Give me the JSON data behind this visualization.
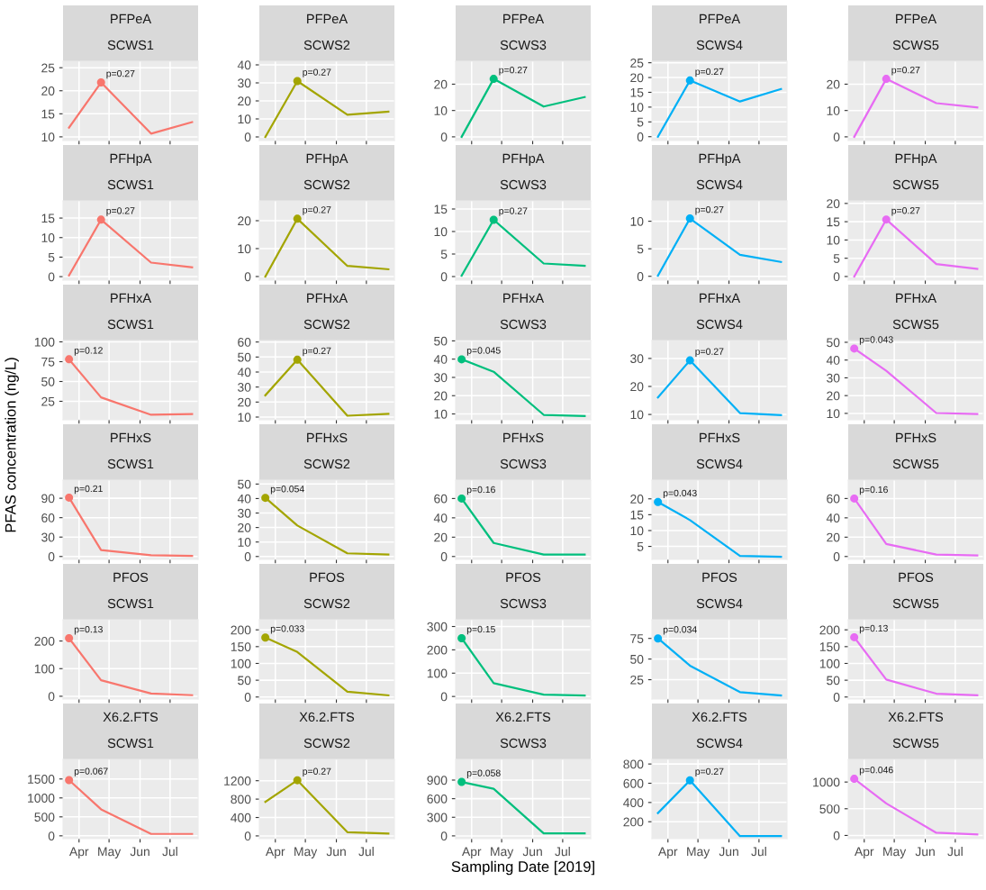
{
  "chart_data": [
    {
      "type": "line",
      "title": "PFPeA",
      "subtitle": "SCWS1",
      "x": [
        "2019-03-22",
        "2019-04-23",
        "2019-06-12",
        "2019-07-23"
      ],
      "series": [
        {
          "color": "#F8766D",
          "values": [
            12,
            21.8,
            10.7,
            13.2
          ]
        },
        {
          "type": "scatter",
          "marker": "circle",
          "x": [
            "2019-04-23"
          ],
          "color": "#F8766D",
          "values": [
            21.8
          ]
        }
      ],
      "annotations": [
        {
          "text": "p=0.27",
          "x": "2019-04-23",
          "y": 21.8
        }
      ],
      "xlim": [
        "2019-03-16",
        "2019-07-29"
      ],
      "xticks": [
        {
          "value": "2019-04-01",
          "label": null
        },
        {
          "value": "2019-05-01",
          "label": null
        },
        {
          "value": "2019-06-01",
          "label": null
        },
        {
          "value": "2019-07-01",
          "label": null
        }
      ],
      "ylim": [
        9.2,
        26.4
      ],
      "yticks": [
        10,
        15,
        20,
        25
      ],
      "grid": true,
      "tick_labels": "y"
    },
    {
      "type": "line",
      "title": "PFPeA",
      "subtitle": "SCWS2",
      "x": [
        "2019-03-22",
        "2019-04-23",
        "2019-06-12",
        "2019-07-23"
      ],
      "series": [
        {
          "color": "#A3A500",
          "values": [
            0,
            31,
            12.3,
            14
          ]
        },
        {
          "type": "scatter",
          "marker": "circle",
          "x": [
            "2019-04-23"
          ],
          "color": "#A3A500",
          "values": [
            31
          ]
        }
      ],
      "annotations": [
        {
          "text": "p=0.27",
          "x": "2019-04-23",
          "y": 31
        }
      ],
      "xlim": [
        "2019-03-16",
        "2019-07-29"
      ],
      "xticks": [
        {
          "value": "2019-04-01",
          "label": null
        },
        {
          "value": "2019-05-01",
          "label": null
        },
        {
          "value": "2019-06-01",
          "label": null
        },
        {
          "value": "2019-07-01",
          "label": null
        }
      ],
      "ylim": [
        -2,
        42
      ],
      "yticks": [
        0,
        10,
        20,
        30,
        40
      ],
      "grid": true,
      "tick_labels": "y"
    },
    {
      "type": "line",
      "title": "PFPeA",
      "subtitle": "SCWS3",
      "x": [
        "2019-03-22",
        "2019-04-23",
        "2019-06-12",
        "2019-07-23"
      ],
      "series": [
        {
          "color": "#00BF7D",
          "values": [
            0,
            22,
            11.5,
            15.1
          ]
        },
        {
          "type": "scatter",
          "marker": "circle",
          "x": [
            "2019-04-23"
          ],
          "color": "#00BF7D",
          "values": [
            22
          ]
        }
      ],
      "annotations": [
        {
          "text": "p=0.27",
          "x": "2019-04-23",
          "y": 22
        }
      ],
      "xlim": [
        "2019-03-16",
        "2019-07-29"
      ],
      "xticks": [
        {
          "value": "2019-04-01",
          "label": null
        },
        {
          "value": "2019-05-01",
          "label": null
        },
        {
          "value": "2019-06-01",
          "label": null
        },
        {
          "value": "2019-07-01",
          "label": null
        }
      ],
      "ylim": [
        -1.4,
        28.7
      ],
      "yticks": [
        0,
        10,
        20
      ],
      "grid": true,
      "tick_labels": "y"
    },
    {
      "type": "line",
      "title": "PFPeA",
      "subtitle": "SCWS4",
      "x": [
        "2019-03-22",
        "2019-04-23",
        "2019-06-12",
        "2019-07-23"
      ],
      "series": [
        {
          "color": "#00B0F6",
          "values": [
            0,
            19,
            11.9,
            16.1
          ]
        },
        {
          "type": "scatter",
          "marker": "circle",
          "x": [
            "2019-04-23"
          ],
          "color": "#00B0F6",
          "values": [
            19
          ]
        }
      ],
      "annotations": [
        {
          "text": "p=0.27",
          "x": "2019-04-23",
          "y": 19
        }
      ],
      "xlim": [
        "2019-03-16",
        "2019-07-29"
      ],
      "xticks": [
        {
          "value": "2019-04-01",
          "label": null
        },
        {
          "value": "2019-05-01",
          "label": null
        },
        {
          "value": "2019-06-01",
          "label": null
        },
        {
          "value": "2019-07-01",
          "label": null
        }
      ],
      "ylim": [
        -1.3,
        25.5
      ],
      "yticks": [
        0,
        5,
        10,
        15,
        20,
        25
      ],
      "grid": true,
      "tick_labels": "y"
    },
    {
      "type": "line",
      "title": "PFPeA",
      "subtitle": "SCWS5",
      "x": [
        "2019-03-22",
        "2019-04-23",
        "2019-06-12",
        "2019-07-23"
      ],
      "series": [
        {
          "color": "#E76BF3",
          "values": [
            0,
            22,
            12.8,
            11.2
          ]
        },
        {
          "type": "scatter",
          "marker": "circle",
          "x": [
            "2019-04-23"
          ],
          "color": "#E76BF3",
          "values": [
            22
          ]
        }
      ],
      "annotations": [
        {
          "text": "p=0.27",
          "x": "2019-04-23",
          "y": 22
        }
      ],
      "xlim": [
        "2019-03-16",
        "2019-07-29"
      ],
      "xticks": [
        {
          "value": "2019-04-01",
          "label": null
        },
        {
          "value": "2019-05-01",
          "label": null
        },
        {
          "value": "2019-06-01",
          "label": null
        },
        {
          "value": "2019-07-01",
          "label": null
        }
      ],
      "ylim": [
        -1.4,
        28.7
      ],
      "yticks": [
        0,
        10,
        20
      ],
      "grid": true,
      "tick_labels": "y"
    },
    {
      "type": "line",
      "title": "PFHpA",
      "subtitle": "SCWS1",
      "x": [
        "2019-03-22",
        "2019-04-23",
        "2019-06-12",
        "2019-07-23"
      ],
      "series": [
        {
          "color": "#F8766D",
          "values": [
            0.3,
            14.6,
            3.6,
            2.4
          ]
        },
        {
          "type": "scatter",
          "marker": "circle",
          "x": [
            "2019-04-23"
          ],
          "color": "#F8766D",
          "values": [
            14.6
          ]
        }
      ],
      "annotations": [
        {
          "text": "p=0.27",
          "x": "2019-04-23",
          "y": 14.6
        }
      ],
      "xlim": [
        "2019-03-16",
        "2019-07-29"
      ],
      "xticks": [
        {
          "value": "2019-04-01",
          "label": null
        },
        {
          "value": "2019-05-01",
          "label": null
        },
        {
          "value": "2019-06-01",
          "label": null
        },
        {
          "value": "2019-07-01",
          "label": null
        }
      ],
      "ylim": [
        -0.9,
        19.4
      ],
      "yticks": [
        0,
        5,
        10,
        15
      ],
      "grid": true,
      "tick_labels": "y"
    },
    {
      "type": "line",
      "title": "PFHpA",
      "subtitle": "SCWS2",
      "x": [
        "2019-03-22",
        "2019-04-23",
        "2019-06-12",
        "2019-07-23"
      ],
      "series": [
        {
          "color": "#A3A500",
          "values": [
            0,
            20.7,
            3.8,
            2.6
          ]
        },
        {
          "type": "scatter",
          "marker": "circle",
          "x": [
            "2019-04-23"
          ],
          "color": "#A3A500",
          "values": [
            20.7
          ]
        }
      ],
      "annotations": [
        {
          "text": "p=0.27",
          "x": "2019-04-23",
          "y": 20.7
        }
      ],
      "xlim": [
        "2019-03-16",
        "2019-07-29"
      ],
      "xticks": [
        {
          "value": "2019-04-01",
          "label": null
        },
        {
          "value": "2019-05-01",
          "label": null
        },
        {
          "value": "2019-06-01",
          "label": null
        },
        {
          "value": "2019-07-01",
          "label": null
        }
      ],
      "ylim": [
        -1.3,
        27.1
      ],
      "yticks": [
        0,
        10,
        20
      ],
      "grid": true,
      "tick_labels": "y"
    },
    {
      "type": "line",
      "title": "PFHpA",
      "subtitle": "SCWS3",
      "x": [
        "2019-03-22",
        "2019-04-23",
        "2019-06-12",
        "2019-07-23"
      ],
      "series": [
        {
          "color": "#00BF7D",
          "values": [
            0.2,
            12.6,
            2.9,
            2.4
          ]
        },
        {
          "type": "scatter",
          "marker": "circle",
          "x": [
            "2019-04-23"
          ],
          "color": "#00BF7D",
          "values": [
            12.6
          ]
        }
      ],
      "annotations": [
        {
          "text": "p=0.27",
          "x": "2019-04-23",
          "y": 12.6
        }
      ],
      "xlim": [
        "2019-03-16",
        "2019-07-29"
      ],
      "xticks": [
        {
          "value": "2019-04-01",
          "label": null
        },
        {
          "value": "2019-05-01",
          "label": null
        },
        {
          "value": "2019-06-01",
          "label": null
        },
        {
          "value": "2019-07-01",
          "label": null
        }
      ],
      "ylim": [
        -0.8,
        16.8
      ],
      "yticks": [
        0,
        5,
        10,
        15
      ],
      "grid": true,
      "tick_labels": "y"
    },
    {
      "type": "line",
      "title": "PFHpA",
      "subtitle": "SCWS4",
      "x": [
        "2019-03-22",
        "2019-04-23",
        "2019-06-12",
        "2019-07-23"
      ],
      "series": [
        {
          "color": "#00B0F6",
          "values": [
            0.1,
            10.5,
            3.9,
            2.6
          ]
        },
        {
          "type": "scatter",
          "marker": "circle",
          "x": [
            "2019-04-23"
          ],
          "color": "#00B0F6",
          "values": [
            10.5
          ]
        }
      ],
      "annotations": [
        {
          "text": "p=0.27",
          "x": "2019-04-23",
          "y": 10.5
        }
      ],
      "xlim": [
        "2019-03-16",
        "2019-07-29"
      ],
      "xticks": [
        {
          "value": "2019-04-01",
          "label": null
        },
        {
          "value": "2019-05-01",
          "label": null
        },
        {
          "value": "2019-06-01",
          "label": null
        },
        {
          "value": "2019-07-01",
          "label": null
        }
      ],
      "ylim": [
        -0.7,
        13.7
      ],
      "yticks": [
        0,
        5,
        10
      ],
      "grid": true,
      "tick_labels": "y"
    },
    {
      "type": "line",
      "title": "PFHpA",
      "subtitle": "SCWS5",
      "x": [
        "2019-03-22",
        "2019-04-23",
        "2019-06-12",
        "2019-07-23"
      ],
      "series": [
        {
          "color": "#E76BF3",
          "values": [
            0,
            15.6,
            3.4,
            2.1
          ]
        },
        {
          "type": "scatter",
          "marker": "circle",
          "x": [
            "2019-04-23"
          ],
          "color": "#E76BF3",
          "values": [
            15.6
          ]
        }
      ],
      "annotations": [
        {
          "text": "p=0.27",
          "x": "2019-04-23",
          "y": 15.6
        }
      ],
      "xlim": [
        "2019-03-16",
        "2019-07-29"
      ],
      "xticks": [
        {
          "value": "2019-04-01",
          "label": null
        },
        {
          "value": "2019-05-01",
          "label": null
        },
        {
          "value": "2019-06-01",
          "label": null
        },
        {
          "value": "2019-07-01",
          "label": null
        }
      ],
      "ylim": [
        -1.0,
        20.7
      ],
      "yticks": [
        0,
        5,
        10,
        15,
        20
      ],
      "grid": true,
      "tick_labels": "y"
    },
    {
      "type": "line",
      "title": "PFHxA",
      "subtitle": "SCWS1",
      "ylabel": "PFAS concentration (ng/L)",
      "x": [
        "2019-03-22",
        "2019-04-23",
        "2019-06-12",
        "2019-07-23"
      ],
      "series": [
        {
          "color": "#F8766D",
          "values": [
            78,
            30,
            8,
            9
          ]
        },
        {
          "type": "scatter",
          "marker": "circle",
          "x": [
            "2019-03-22"
          ],
          "color": "#F8766D",
          "values": [
            78
          ]
        }
      ],
      "annotations": [
        {
          "text": "p=0.12",
          "x": "2019-03-22",
          "y": 78
        }
      ],
      "xlim": [
        "2019-03-16",
        "2019-07-29"
      ],
      "xticks": [
        {
          "value": "2019-04-01",
          "label": null
        },
        {
          "value": "2019-05-01",
          "label": null
        },
        {
          "value": "2019-06-01",
          "label": null
        },
        {
          "value": "2019-07-01",
          "label": null
        }
      ],
      "ylim": [
        1.7,
        101.7
      ],
      "yticks": [
        25,
        50,
        75,
        100
      ],
      "grid": true,
      "tick_labels": "y"
    },
    {
      "type": "line",
      "title": "PFHxA",
      "subtitle": "SCWS2",
      "x": [
        "2019-03-22",
        "2019-04-23",
        "2019-06-12",
        "2019-07-23"
      ],
      "series": [
        {
          "color": "#A3A500",
          "values": [
            24.5,
            48.2,
            10.9,
            12.2
          ]
        },
        {
          "type": "scatter",
          "marker": "circle",
          "x": [
            "2019-04-23"
          ],
          "color": "#A3A500",
          "values": [
            48.2
          ]
        }
      ],
      "annotations": [
        {
          "text": "p=0.27",
          "x": "2019-04-23",
          "y": 48.2
        }
      ],
      "xlim": [
        "2019-03-16",
        "2019-07-29"
      ],
      "xticks": [
        {
          "value": "2019-04-01",
          "label": null
        },
        {
          "value": "2019-05-01",
          "label": null
        },
        {
          "value": "2019-06-01",
          "label": null
        },
        {
          "value": "2019-07-01",
          "label": null
        }
      ],
      "ylim": [
        8.2,
        61
      ],
      "yticks": [
        10,
        20,
        30,
        40,
        50,
        60
      ],
      "grid": true,
      "tick_labels": "y"
    },
    {
      "type": "line",
      "title": "PFHxA",
      "subtitle": "SCWS3",
      "x": [
        "2019-03-22",
        "2019-04-23",
        "2019-06-12",
        "2019-07-23"
      ],
      "series": [
        {
          "color": "#00BF7D",
          "values": [
            39.9,
            33.1,
            9.5,
            8.9
          ]
        },
        {
          "type": "scatter",
          "marker": "circle",
          "x": [
            "2019-03-22"
          ],
          "color": "#00BF7D",
          "values": [
            39.9
          ]
        }
      ],
      "annotations": [
        {
          "text": "p=0.045",
          "x": "2019-03-22",
          "y": 39.9
        }
      ],
      "xlim": [
        "2019-03-16",
        "2019-07-29"
      ],
      "xticks": [
        {
          "value": "2019-04-01",
          "label": null
        },
        {
          "value": "2019-05-01",
          "label": null
        },
        {
          "value": "2019-06-01",
          "label": null
        },
        {
          "value": "2019-07-01",
          "label": null
        }
      ],
      "ylim": [
        6.8,
        50.2
      ],
      "yticks": [
        10,
        20,
        30,
        40,
        50
      ],
      "grid": true,
      "tick_labels": "y"
    },
    {
      "type": "line",
      "title": "PFHxA",
      "subtitle": "SCWS4",
      "x": [
        "2019-03-22",
        "2019-04-23",
        "2019-06-12",
        "2019-07-23"
      ],
      "series": [
        {
          "color": "#00B0F6",
          "values": [
            16.1,
            29.3,
            10.5,
            9.8
          ]
        },
        {
          "type": "scatter",
          "marker": "circle",
          "x": [
            "2019-04-23"
          ],
          "color": "#00B0F6",
          "values": [
            29.3
          ]
        }
      ],
      "annotations": [
        {
          "text": "p=0.27",
          "x": "2019-04-23",
          "y": 29.3
        }
      ],
      "xlim": [
        "2019-03-16",
        "2019-07-29"
      ],
      "xticks": [
        {
          "value": "2019-04-01",
          "label": null
        },
        {
          "value": "2019-05-01",
          "label": null
        },
        {
          "value": "2019-06-01",
          "label": null
        },
        {
          "value": "2019-07-01",
          "label": null
        }
      ],
      "ylim": [
        8.1,
        36.4
      ],
      "yticks": [
        10,
        20,
        30
      ],
      "grid": true,
      "tick_labels": "y"
    },
    {
      "type": "line",
      "title": "PFHxA",
      "subtitle": "SCWS5",
      "x": [
        "2019-03-22",
        "2019-04-23",
        "2019-06-12",
        "2019-07-23"
      ],
      "series": [
        {
          "color": "#E76BF3",
          "values": [
            46.5,
            34,
            10.2,
            9.6
          ]
        },
        {
          "type": "scatter",
          "marker": "circle",
          "x": [
            "2019-03-22"
          ],
          "color": "#E76BF3",
          "values": [
            46.5
          ]
        }
      ],
      "annotations": [
        {
          "text": "p=0.043",
          "x": "2019-03-22",
          "y": 46.5
        }
      ],
      "xlim": [
        "2019-03-16",
        "2019-07-29"
      ],
      "xticks": [
        {
          "value": "2019-04-01",
          "label": null
        },
        {
          "value": "2019-05-01",
          "label": null
        },
        {
          "value": "2019-06-01",
          "label": null
        },
        {
          "value": "2019-07-01",
          "label": null
        }
      ],
      "ylim": [
        6.4,
        51
      ],
      "yticks": [
        10,
        20,
        30,
        40,
        50
      ],
      "grid": true,
      "tick_labels": "y"
    },
    {
      "type": "line",
      "title": "PFHxS",
      "subtitle": "SCWS1",
      "x": [
        "2019-03-22",
        "2019-04-23",
        "2019-06-12",
        "2019-07-23"
      ],
      "series": [
        {
          "color": "#F8766D",
          "values": [
            91,
            10,
            2,
            1
          ]
        },
        {
          "type": "scatter",
          "marker": "circle",
          "x": [
            "2019-03-22"
          ],
          "color": "#F8766D",
          "values": [
            91
          ]
        }
      ],
      "annotations": [
        {
          "text": "p=0.21",
          "x": "2019-03-22",
          "y": 91
        }
      ],
      "xlim": [
        "2019-03-16",
        "2019-07-29"
      ],
      "xticks": [
        {
          "value": "2019-04-01",
          "label": null
        },
        {
          "value": "2019-05-01",
          "label": null
        },
        {
          "value": "2019-06-01",
          "label": null
        },
        {
          "value": "2019-07-01",
          "label": null
        }
      ],
      "ylim": [
        -4.5,
        118
      ],
      "yticks": [
        0,
        30,
        60,
        90
      ],
      "grid": true,
      "tick_labels": "y"
    },
    {
      "type": "line",
      "title": "PFHxS",
      "subtitle": "SCWS2",
      "x": [
        "2019-03-22",
        "2019-04-23",
        "2019-06-12",
        "2019-07-23"
      ],
      "series": [
        {
          "color": "#A3A500",
          "values": [
            40.5,
            21.4,
            2.2,
            1.4
          ]
        },
        {
          "type": "scatter",
          "marker": "circle",
          "x": [
            "2019-03-22"
          ],
          "color": "#A3A500",
          "values": [
            40.5
          ]
        }
      ],
      "annotations": [
        {
          "text": "p=0.054",
          "x": "2019-03-22",
          "y": 40.5
        }
      ],
      "xlim": [
        "2019-03-16",
        "2019-07-29"
      ],
      "xticks": [
        {
          "value": "2019-04-01",
          "label": null
        },
        {
          "value": "2019-05-01",
          "label": null
        },
        {
          "value": "2019-06-01",
          "label": null
        },
        {
          "value": "2019-07-01",
          "label": null
        }
      ],
      "ylim": [
        -2,
        52.7
      ],
      "yticks": [
        0,
        10,
        20,
        30,
        40,
        50
      ],
      "grid": true,
      "tick_labels": "y"
    },
    {
      "type": "line",
      "title": "PFHxS",
      "subtitle": "SCWS3",
      "x": [
        "2019-03-22",
        "2019-04-23",
        "2019-06-12",
        "2019-07-23"
      ],
      "series": [
        {
          "color": "#00BF7D",
          "values": [
            60,
            14,
            2,
            2
          ]
        },
        {
          "type": "scatter",
          "marker": "circle",
          "x": [
            "2019-03-22"
          ],
          "color": "#00BF7D",
          "values": [
            60
          ]
        }
      ],
      "annotations": [
        {
          "text": "p=0.16",
          "x": "2019-03-22",
          "y": 60
        }
      ],
      "xlim": [
        "2019-03-16",
        "2019-07-29"
      ],
      "xticks": [
        {
          "value": "2019-04-01",
          "label": null
        },
        {
          "value": "2019-05-01",
          "label": null
        },
        {
          "value": "2019-06-01",
          "label": null
        },
        {
          "value": "2019-07-01",
          "label": null
        }
      ],
      "ylim": [
        -3,
        79
      ],
      "yticks": [
        0,
        20,
        40,
        60
      ],
      "grid": true,
      "tick_labels": "y"
    },
    {
      "type": "line",
      "title": "PFHxS",
      "subtitle": "SCWS4",
      "x": [
        "2019-03-22",
        "2019-04-23",
        "2019-06-12",
        "2019-07-23"
      ],
      "series": [
        {
          "color": "#00B0F6",
          "values": [
            19,
            13.3,
            2,
            1.7
          ]
        },
        {
          "type": "scatter",
          "marker": "circle",
          "x": [
            "2019-03-22"
          ],
          "color": "#00B0F6",
          "values": [
            19
          ]
        }
      ],
      "annotations": [
        {
          "text": "p=0.043",
          "x": "2019-03-22",
          "y": 19
        }
      ],
      "xlim": [
        "2019-03-16",
        "2019-07-29"
      ],
      "xticks": [
        {
          "value": "2019-04-01",
          "label": null
        },
        {
          "value": "2019-05-01",
          "label": null
        },
        {
          "value": "2019-06-01",
          "label": null
        },
        {
          "value": "2019-07-01",
          "label": null
        }
      ],
      "ylim": [
        0.9,
        25.9
      ],
      "yticks": [
        5,
        10,
        15,
        20
      ],
      "grid": true,
      "tick_labels": "y"
    },
    {
      "type": "line",
      "title": "PFHxS",
      "subtitle": "SCWS5",
      "x": [
        "2019-03-22",
        "2019-04-23",
        "2019-06-12",
        "2019-07-23"
      ],
      "series": [
        {
          "color": "#E76BF3",
          "values": [
            60,
            13,
            2,
            1
          ]
        },
        {
          "type": "scatter",
          "marker": "circle",
          "x": [
            "2019-03-22"
          ],
          "color": "#E76BF3",
          "values": [
            60
          ]
        }
      ],
      "annotations": [
        {
          "text": "p=0.16",
          "x": "2019-03-22",
          "y": 60
        }
      ],
      "xlim": [
        "2019-03-16",
        "2019-07-29"
      ],
      "xticks": [
        {
          "value": "2019-04-01",
          "label": null
        },
        {
          "value": "2019-05-01",
          "label": null
        },
        {
          "value": "2019-06-01",
          "label": null
        },
        {
          "value": "2019-07-01",
          "label": null
        }
      ],
      "ylim": [
        -3,
        79
      ],
      "yticks": [
        0,
        20,
        40,
        60
      ],
      "grid": true,
      "tick_labels": "y"
    },
    {
      "type": "line",
      "title": "PFOS",
      "subtitle": "SCWS1",
      "x": [
        "2019-03-22",
        "2019-04-23",
        "2019-06-12",
        "2019-07-23"
      ],
      "series": [
        {
          "color": "#F8766D",
          "values": [
            210,
            58,
            10,
            4
          ]
        },
        {
          "type": "scatter",
          "marker": "circle",
          "x": [
            "2019-03-22"
          ],
          "color": "#F8766D",
          "values": [
            210
          ]
        }
      ],
      "annotations": [
        {
          "text": "p=0.13",
          "x": "2019-03-22",
          "y": 210
        }
      ],
      "xlim": [
        "2019-03-16",
        "2019-07-29"
      ],
      "xticks": [
        {
          "value": "2019-04-01",
          "label": null
        },
        {
          "value": "2019-05-01",
          "label": null
        },
        {
          "value": "2019-06-01",
          "label": null
        },
        {
          "value": "2019-07-01",
          "label": null
        }
      ],
      "ylim": [
        -10,
        277
      ],
      "yticks": [
        0,
        100,
        200
      ],
      "grid": true,
      "tick_labels": "y"
    },
    {
      "type": "line",
      "title": "PFOS",
      "subtitle": "SCWS2",
      "x": [
        "2019-03-22",
        "2019-04-23",
        "2019-06-12",
        "2019-07-23"
      ],
      "series": [
        {
          "color": "#A3A500",
          "values": [
            177,
            134,
            16,
            5
          ]
        },
        {
          "type": "scatter",
          "marker": "circle",
          "x": [
            "2019-03-22"
          ],
          "color": "#A3A500",
          "values": [
            177
          ]
        }
      ],
      "annotations": [
        {
          "text": "p=0.033",
          "x": "2019-03-22",
          "y": 177
        }
      ],
      "xlim": [
        "2019-03-16",
        "2019-07-29"
      ],
      "xticks": [
        {
          "value": "2019-04-01",
          "label": null
        },
        {
          "value": "2019-05-01",
          "label": null
        },
        {
          "value": "2019-06-01",
          "label": null
        },
        {
          "value": "2019-07-01",
          "label": null
        }
      ],
      "ylim": [
        -6,
        230
      ],
      "yticks": [
        0,
        50,
        100,
        150,
        200
      ],
      "grid": true,
      "tick_labels": "y"
    },
    {
      "type": "line",
      "title": "PFOS",
      "subtitle": "SCWS3",
      "x": [
        "2019-03-22",
        "2019-04-23",
        "2019-06-12",
        "2019-07-23"
      ],
      "series": [
        {
          "color": "#00BF7D",
          "values": [
            250,
            57,
            8,
            4
          ]
        },
        {
          "type": "scatter",
          "marker": "circle",
          "x": [
            "2019-03-22"
          ],
          "color": "#00BF7D",
          "values": [
            250
          ]
        }
      ],
      "annotations": [
        {
          "text": "p=0.15",
          "x": "2019-03-22",
          "y": 250
        }
      ],
      "xlim": [
        "2019-03-16",
        "2019-07-29"
      ],
      "xticks": [
        {
          "value": "2019-04-01",
          "label": null
        },
        {
          "value": "2019-05-01",
          "label": null
        },
        {
          "value": "2019-06-01",
          "label": null
        },
        {
          "value": "2019-07-01",
          "label": null
        }
      ],
      "ylim": [
        -11,
        329
      ],
      "yticks": [
        0,
        100,
        200,
        300
      ],
      "grid": true,
      "tick_labels": "y"
    },
    {
      "type": "line",
      "title": "PFOS",
      "subtitle": "SCWS4",
      "x": [
        "2019-03-22",
        "2019-04-23",
        "2019-06-12",
        "2019-07-23"
      ],
      "series": [
        {
          "color": "#00B0F6",
          "values": [
            75,
            42,
            10,
            6
          ]
        },
        {
          "type": "scatter",
          "marker": "circle",
          "x": [
            "2019-03-22"
          ],
          "color": "#00B0F6",
          "values": [
            75
          ]
        }
      ],
      "annotations": [
        {
          "text": "p=0.034",
          "x": "2019-03-22",
          "y": 75
        }
      ],
      "xlim": [
        "2019-03-16",
        "2019-07-29"
      ],
      "xticks": [
        {
          "value": "2019-04-01",
          "label": null
        },
        {
          "value": "2019-05-01",
          "label": null
        },
        {
          "value": "2019-06-01",
          "label": null
        },
        {
          "value": "2019-07-01",
          "label": null
        }
      ],
      "ylim": [
        1.6,
        97.6
      ],
      "yticks": [
        25,
        50,
        75
      ],
      "grid": true,
      "tick_labels": "y"
    },
    {
      "type": "line",
      "title": "PFOS",
      "subtitle": "SCWS5",
      "x": [
        "2019-03-22",
        "2019-04-23",
        "2019-06-12",
        "2019-07-23"
      ],
      "series": [
        {
          "color": "#E76BF3",
          "values": [
            178,
            52,
            10,
            5
          ]
        },
        {
          "type": "scatter",
          "marker": "circle",
          "x": [
            "2019-03-22"
          ],
          "color": "#E76BF3",
          "values": [
            178
          ]
        }
      ],
      "annotations": [
        {
          "text": "p=0.13",
          "x": "2019-03-22",
          "y": 178
        }
      ],
      "xlim": [
        "2019-03-16",
        "2019-07-29"
      ],
      "xticks": [
        {
          "value": "2019-04-01",
          "label": null
        },
        {
          "value": "2019-05-01",
          "label": null
        },
        {
          "value": "2019-06-01",
          "label": null
        },
        {
          "value": "2019-07-01",
          "label": null
        }
      ],
      "ylim": [
        -6,
        230
      ],
      "yticks": [
        0,
        50,
        100,
        150,
        200
      ],
      "grid": true,
      "tick_labels": "y"
    },
    {
      "type": "line",
      "title": "X6.2.FTS",
      "subtitle": "SCWS1",
      "x": [
        "2019-03-22",
        "2019-04-23",
        "2019-06-12",
        "2019-07-23"
      ],
      "series": [
        {
          "color": "#F8766D",
          "values": [
            1470,
            700,
            50,
            50
          ]
        },
        {
          "type": "scatter",
          "marker": "circle",
          "x": [
            "2019-03-22"
          ],
          "color": "#F8766D",
          "values": [
            1470
          ]
        }
      ],
      "annotations": [
        {
          "text": "p=0.067",
          "x": "2019-03-22",
          "y": 1470
        }
      ],
      "xlim": [
        "2019-03-16",
        "2019-07-29"
      ],
      "xticks": [
        {
          "value": "2019-04-01",
          "label": "Apr"
        },
        {
          "value": "2019-05-01",
          "label": "May"
        },
        {
          "value": "2019-06-01",
          "label": "Jun"
        },
        {
          "value": "2019-07-01",
          "label": "Jul"
        }
      ],
      "ylim": [
        -75,
        2017
      ],
      "yticks": [
        0,
        500,
        1000,
        1500
      ],
      "grid": true
    },
    {
      "type": "line",
      "title": "X6.2.FTS",
      "subtitle": "SCWS2",
      "x": [
        "2019-03-22",
        "2019-04-23",
        "2019-06-12",
        "2019-07-23"
      ],
      "series": [
        {
          "color": "#A3A500",
          "values": [
            740,
            1210,
            80,
            50
          ]
        },
        {
          "type": "scatter",
          "marker": "circle",
          "x": [
            "2019-04-23"
          ],
          "color": "#A3A500",
          "values": [
            1210
          ]
        }
      ],
      "annotations": [
        {
          "text": "p=0.27",
          "x": "2019-04-23",
          "y": 1210
        }
      ],
      "xlim": [
        "2019-03-16",
        "2019-07-29"
      ],
      "xticks": [
        {
          "value": "2019-04-01",
          "label": "Apr"
        },
        {
          "value": "2019-05-01",
          "label": "May"
        },
        {
          "value": "2019-06-01",
          "label": "Jun"
        },
        {
          "value": "2019-07-01",
          "label": "Jul"
        }
      ],
      "ylim": [
        -60,
        1664
      ],
      "yticks": [
        0,
        400,
        800,
        1200
      ],
      "grid": true
    },
    {
      "type": "line",
      "title": "X6.2.FTS",
      "subtitle": "SCWS3",
      "xlabel": "Sampling Date [2019]",
      "x": [
        "2019-03-22",
        "2019-04-23",
        "2019-06-12",
        "2019-07-23"
      ],
      "series": [
        {
          "color": "#00BF7D",
          "values": [
            870,
            760,
            40,
            40
          ]
        },
        {
          "type": "scatter",
          "marker": "circle",
          "x": [
            "2019-03-22"
          ],
          "color": "#00BF7D",
          "values": [
            870
          ]
        }
      ],
      "annotations": [
        {
          "text": "p=0.058",
          "x": "2019-03-22",
          "y": 870
        }
      ],
      "xlim": [
        "2019-03-16",
        "2019-07-29"
      ],
      "xticks": [
        {
          "value": "2019-04-01",
          "label": "Apr"
        },
        {
          "value": "2019-05-01",
          "label": "May"
        },
        {
          "value": "2019-06-01",
          "label": "Jun"
        },
        {
          "value": "2019-07-01",
          "label": "Jul"
        }
      ],
      "ylim": [
        -45,
        1234
      ],
      "yticks": [
        0,
        300,
        600,
        900
      ],
      "grid": true
    },
    {
      "type": "line",
      "title": "X6.2.FTS",
      "subtitle": "SCWS4",
      "x": [
        "2019-03-22",
        "2019-04-23",
        "2019-06-12",
        "2019-07-23"
      ],
      "series": [
        {
          "color": "#00B0F6",
          "values": [
            290,
            630,
            50,
            50
          ]
        },
        {
          "type": "scatter",
          "marker": "circle",
          "x": [
            "2019-04-23"
          ],
          "color": "#00B0F6",
          "values": [
            630
          ]
        }
      ],
      "annotations": [
        {
          "text": "p=0.27",
          "x": "2019-04-23",
          "y": 630
        }
      ],
      "xlim": [
        "2019-03-16",
        "2019-07-29"
      ],
      "xticks": [
        {
          "value": "2019-04-01",
          "label": "Apr"
        },
        {
          "value": "2019-05-01",
          "label": "May"
        },
        {
          "value": "2019-06-01",
          "label": "Jun"
        },
        {
          "value": "2019-07-01",
          "label": "Jul"
        }
      ],
      "ylim": [
        24,
        848
      ],
      "yticks": [
        200,
        400,
        600,
        800
      ],
      "grid": true
    },
    {
      "type": "line",
      "title": "X6.2.FTS",
      "subtitle": "SCWS5",
      "x": [
        "2019-03-22",
        "2019-04-23",
        "2019-06-12",
        "2019-07-23"
      ],
      "series": [
        {
          "color": "#E76BF3",
          "values": [
            1060,
            600,
            50,
            20
          ]
        },
        {
          "type": "scatter",
          "marker": "circle",
          "x": [
            "2019-03-22"
          ],
          "color": "#E76BF3",
          "values": [
            1060
          ]
        }
      ],
      "annotations": [
        {
          "text": "p=0.046",
          "x": "2019-03-22",
          "y": 1060
        }
      ],
      "xlim": [
        "2019-03-16",
        "2019-07-29"
      ],
      "xticks": [
        {
          "value": "2019-04-01",
          "label": "Apr"
        },
        {
          "value": "2019-05-01",
          "label": "May"
        },
        {
          "value": "2019-06-01",
          "label": "Jun"
        },
        {
          "value": "2019-07-01",
          "label": "Jul"
        }
      ],
      "ylim": [
        -60,
        1424
      ],
      "yticks": [
        0,
        500,
        1000
      ],
      "grid": true
    }
  ]
}
